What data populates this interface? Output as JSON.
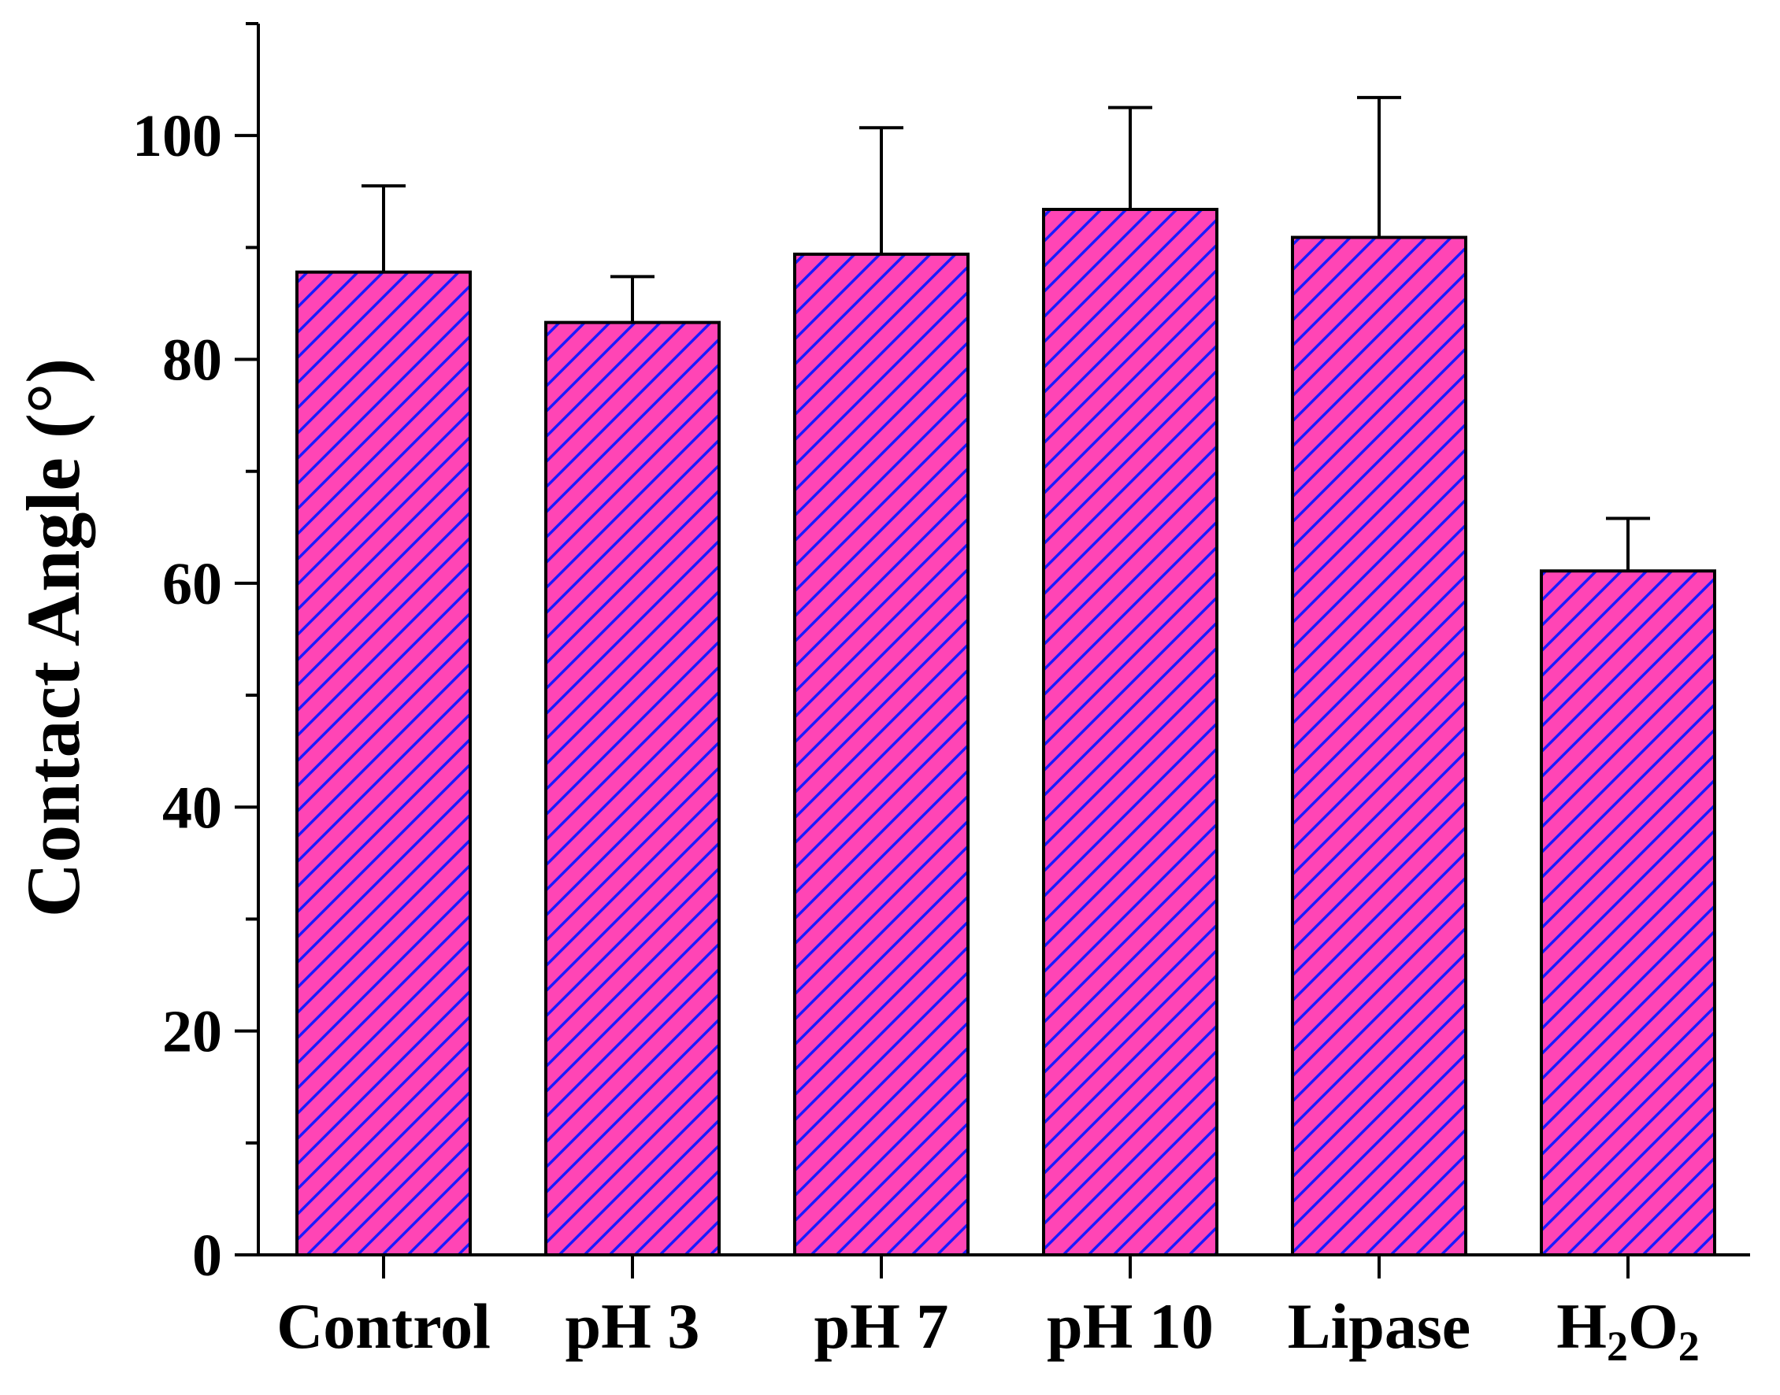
{
  "chart_data": {
    "type": "bar",
    "title": "",
    "xlabel": "",
    "ylabel": "Contact Angle (°)",
    "ylim": [
      0,
      110
    ],
    "yticks": [
      0,
      20,
      40,
      60,
      80,
      100
    ],
    "yminor_step": 10,
    "grid": false,
    "legend": "none",
    "categories": [
      {
        "label": "Control"
      },
      {
        "label": "pH 3"
      },
      {
        "label": "pH 7"
      },
      {
        "label": "pH 10"
      },
      {
        "label": "Lipase"
      },
      {
        "label": "H",
        "sub1": "2",
        "mid": "O",
        "sub2": "2"
      }
    ],
    "values": [
      87.8,
      83.3,
      89.4,
      93.4,
      90.9,
      61.1
    ],
    "errors": [
      7.7,
      4.1,
      11.3,
      9.1,
      12.5,
      4.7
    ],
    "colors": {
      "bar_fill": "#ff45b5",
      "hatch": "#1a1aff",
      "outline": "#000000"
    }
  }
}
